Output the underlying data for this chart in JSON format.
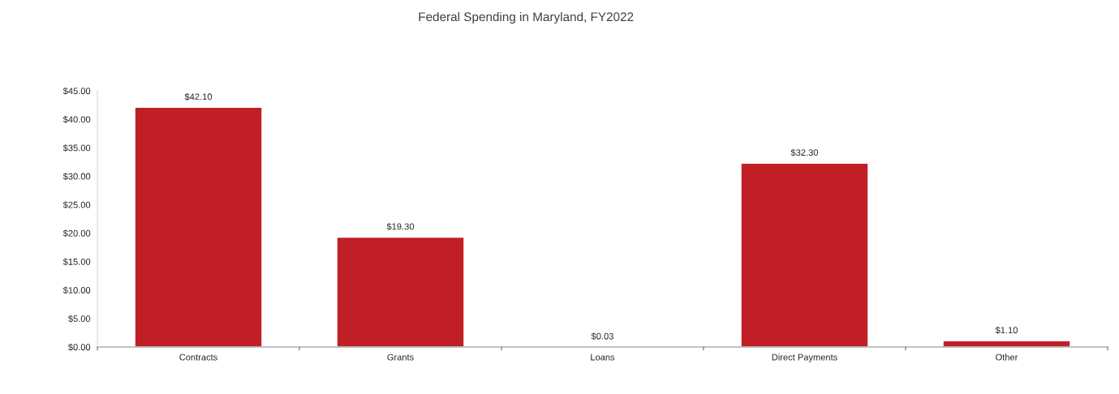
{
  "chart_data": {
    "type": "bar",
    "title": "Federal Spending in Maryland, FY2022",
    "categories": [
      "Contracts",
      "Grants",
      "Loans",
      "Direct Payments",
      "Other"
    ],
    "values": [
      42.1,
      19.3,
      0.03,
      32.3,
      1.1
    ],
    "value_labels": [
      "$42.10",
      "$19.30",
      "$0.03",
      "$32.30",
      "$1.10"
    ],
    "color": "#c01f26",
    "ylim": [
      0,
      45
    ],
    "yticks": [
      {
        "value": 0,
        "label": "$0.00"
      },
      {
        "value": 5,
        "label": "$5.00"
      },
      {
        "value": 10,
        "label": "$10.00"
      },
      {
        "value": 15,
        "label": "$15.00"
      },
      {
        "value": 20,
        "label": "$20.00"
      },
      {
        "value": 25,
        "label": "$25.00"
      },
      {
        "value": 30,
        "label": "$30.00"
      },
      {
        "value": 35,
        "label": "$35.00"
      },
      {
        "value": 40,
        "label": "$40.00"
      },
      {
        "value": 45,
        "label": "$45.00"
      }
    ],
    "grid": false,
    "legend": false
  }
}
